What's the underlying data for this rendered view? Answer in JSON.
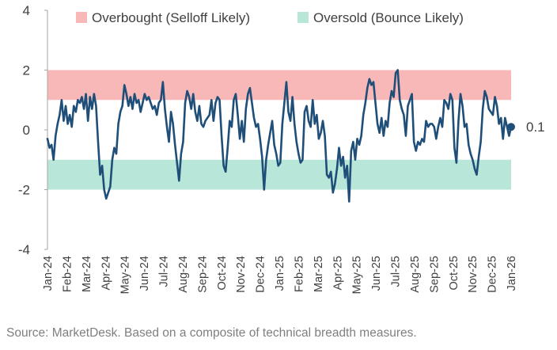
{
  "chart_data": {
    "type": "line",
    "title": "",
    "xlabel": "",
    "ylabel": "",
    "ylim": [
      -4,
      4
    ],
    "y_ticks": [
      4,
      2,
      0,
      -2,
      -4
    ],
    "x_tick_labels": [
      "Jan-24",
      "Feb-24",
      "Mar-24",
      "Apr-24",
      "May-24",
      "Jun-24",
      "Jul-24",
      "Aug-24",
      "Sep-24",
      "Oct-24",
      "Nov-24",
      "Dec-24",
      "Jan-25",
      "Feb-25",
      "Mar-25",
      "Apr-25",
      "May-25",
      "Jun-25",
      "Jul-25",
      "Aug-25",
      "Sep-25",
      "Oct-25",
      "Nov-25",
      "Dec-25",
      "Jan-26"
    ],
    "bands": [
      {
        "label": "Overbought (Selloff Likely)",
        "from": 1,
        "to": 2,
        "color": "#f9b8b8"
      },
      {
        "label": "Oversold (Bounce Likely)",
        "from": -2,
        "to": -1,
        "color": "#b8e6d8"
      }
    ],
    "legend_position": "top",
    "line_color": "#1f4e79",
    "last_value_label": "0.1",
    "series": [
      {
        "values": [
          -0.3,
          -0.6,
          -0.5,
          -1.0,
          -0.2,
          0.2,
          0.5,
          1.0,
          0.3,
          0.8,
          0.2,
          0.5,
          0.1,
          0.8,
          0.6,
          1.0,
          0.9,
          1.1,
          0.7,
          1.2,
          0.3,
          1.1,
          0.7,
          1.2,
          0.8,
          -0.4,
          -1.5,
          -1.2,
          -2.0,
          -2.3,
          -2.1,
          -1.9,
          -1.0,
          -0.6,
          -0.8,
          0.2,
          0.6,
          0.8,
          1.5,
          1.2,
          0.8,
          1.1,
          0.7,
          1.2,
          0.9,
          1.0,
          0.6,
          0.9,
          1.2,
          1.0,
          1.1,
          0.9,
          0.7,
          0.8,
          0.5,
          0.9,
          1.0,
          1.6,
          0.7,
          0.1,
          -0.4,
          0.6,
          0.2,
          -0.5,
          -1.1,
          -1.7,
          -0.8,
          -0.4,
          0.9,
          1.3,
          1.1,
          0.7,
          1.2,
          0.6,
          0.3,
          0.8,
          0.2,
          0.1,
          0.3,
          0.4,
          0.5,
          1.0,
          0.3,
          0.9,
          1.1,
          1.0,
          -0.2,
          -1.2,
          -1.4,
          -0.6,
          0.3,
          0.1,
          1.0,
          1.2,
          0.5,
          -0.3,
          0.3,
          -0.4,
          0.7,
          1.2,
          1.4,
          0.9,
          0.4,
          0.1,
          0.2,
          -0.3,
          -0.9,
          -2.0,
          -1.0,
          -0.5,
          -0.1,
          0.3,
          -0.5,
          -0.8,
          -1.2,
          -1.1,
          0.2,
          0.9,
          1.6,
          0.6,
          0.3,
          1.1,
          0.2,
          -0.4,
          -0.8,
          -1.1,
          -1.0,
          0.6,
          0.8,
          0.3,
          0.1,
          1.0,
          0.2,
          0.5,
          -0.3,
          -0.1,
          0.3,
          -0.2,
          -1.5,
          -1.6,
          -1.4,
          -2.1,
          -1.8,
          -1.3,
          -0.6,
          -1.2,
          -0.9,
          -1.6,
          -1.2,
          -2.4,
          -0.7,
          -0.4,
          -1.0,
          -0.3,
          -0.5,
          -0.2,
          0.5,
          0.9,
          1.4,
          1.7,
          1.5,
          1.6,
          0.9,
          0.2,
          -0.1,
          0.4,
          -0.2,
          0.3,
          0.1,
          0.9,
          1.3,
          1.1,
          1.9,
          2.0,
          1.0,
          0.7,
          0.5,
          -0.2,
          0.8,
          1.0,
          1.2,
          -0.4,
          -0.7,
          -0.4,
          -0.5,
          -0.3,
          -0.4,
          0.3,
          0.1,
          0.2,
          0.2,
          0.1,
          -0.3,
          0.1,
          0.4,
          0.1,
          1.0,
          0.9,
          0.7,
          1.2,
          1.0,
          -0.6,
          -1.1,
          0.3,
          1.2,
          0.8,
          0.1,
          0.2,
          -0.5,
          -0.8,
          -1.0,
          -1.3,
          -1.5,
          -0.9,
          -0.4,
          0.7,
          1.3,
          1.1,
          0.7,
          0.6,
          0.5,
          1.1,
          0.8,
          0.2,
          0.4,
          -0.3,
          0.4,
          0.1,
          -0.2,
          0.1
        ]
      }
    ]
  },
  "source_text": "Source: MarketDesk. Based on a composite of technical breadth measures."
}
